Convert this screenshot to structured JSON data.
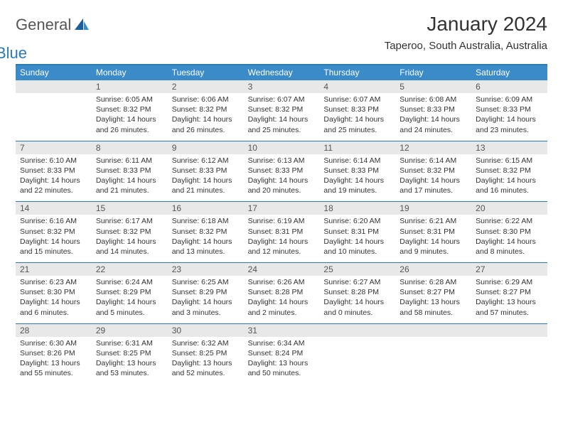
{
  "logo": {
    "text1": "General",
    "text2": "Blue"
  },
  "title": "January 2024",
  "location": "Taperoo, South Australia, Australia",
  "colors": {
    "header_bg": "#3b8bc9",
    "header_border": "#2a7ab9",
    "daynum_bg": "#e8e8e8",
    "text": "#333333",
    "logo_blue": "#2a7ab9"
  },
  "day_names": [
    "Sunday",
    "Monday",
    "Tuesday",
    "Wednesday",
    "Thursday",
    "Friday",
    "Saturday"
  ],
  "weeks": [
    [
      {
        "n": "",
        "lines": [
          "",
          "",
          "",
          ""
        ]
      },
      {
        "n": "1",
        "lines": [
          "Sunrise: 6:05 AM",
          "Sunset: 8:32 PM",
          "Daylight: 14 hours",
          "and 26 minutes."
        ]
      },
      {
        "n": "2",
        "lines": [
          "Sunrise: 6:06 AM",
          "Sunset: 8:32 PM",
          "Daylight: 14 hours",
          "and 26 minutes."
        ]
      },
      {
        "n": "3",
        "lines": [
          "Sunrise: 6:07 AM",
          "Sunset: 8:32 PM",
          "Daylight: 14 hours",
          "and 25 minutes."
        ]
      },
      {
        "n": "4",
        "lines": [
          "Sunrise: 6:07 AM",
          "Sunset: 8:33 PM",
          "Daylight: 14 hours",
          "and 25 minutes."
        ]
      },
      {
        "n": "5",
        "lines": [
          "Sunrise: 6:08 AM",
          "Sunset: 8:33 PM",
          "Daylight: 14 hours",
          "and 24 minutes."
        ]
      },
      {
        "n": "6",
        "lines": [
          "Sunrise: 6:09 AM",
          "Sunset: 8:33 PM",
          "Daylight: 14 hours",
          "and 23 minutes."
        ]
      }
    ],
    [
      {
        "n": "7",
        "lines": [
          "Sunrise: 6:10 AM",
          "Sunset: 8:33 PM",
          "Daylight: 14 hours",
          "and 22 minutes."
        ]
      },
      {
        "n": "8",
        "lines": [
          "Sunrise: 6:11 AM",
          "Sunset: 8:33 PM",
          "Daylight: 14 hours",
          "and 21 minutes."
        ]
      },
      {
        "n": "9",
        "lines": [
          "Sunrise: 6:12 AM",
          "Sunset: 8:33 PM",
          "Daylight: 14 hours",
          "and 21 minutes."
        ]
      },
      {
        "n": "10",
        "lines": [
          "Sunrise: 6:13 AM",
          "Sunset: 8:33 PM",
          "Daylight: 14 hours",
          "and 20 minutes."
        ]
      },
      {
        "n": "11",
        "lines": [
          "Sunrise: 6:14 AM",
          "Sunset: 8:33 PM",
          "Daylight: 14 hours",
          "and 19 minutes."
        ]
      },
      {
        "n": "12",
        "lines": [
          "Sunrise: 6:14 AM",
          "Sunset: 8:32 PM",
          "Daylight: 14 hours",
          "and 17 minutes."
        ]
      },
      {
        "n": "13",
        "lines": [
          "Sunrise: 6:15 AM",
          "Sunset: 8:32 PM",
          "Daylight: 14 hours",
          "and 16 minutes."
        ]
      }
    ],
    [
      {
        "n": "14",
        "lines": [
          "Sunrise: 6:16 AM",
          "Sunset: 8:32 PM",
          "Daylight: 14 hours",
          "and 15 minutes."
        ]
      },
      {
        "n": "15",
        "lines": [
          "Sunrise: 6:17 AM",
          "Sunset: 8:32 PM",
          "Daylight: 14 hours",
          "and 14 minutes."
        ]
      },
      {
        "n": "16",
        "lines": [
          "Sunrise: 6:18 AM",
          "Sunset: 8:32 PM",
          "Daylight: 14 hours",
          "and 13 minutes."
        ]
      },
      {
        "n": "17",
        "lines": [
          "Sunrise: 6:19 AM",
          "Sunset: 8:31 PM",
          "Daylight: 14 hours",
          "and 12 minutes."
        ]
      },
      {
        "n": "18",
        "lines": [
          "Sunrise: 6:20 AM",
          "Sunset: 8:31 PM",
          "Daylight: 14 hours",
          "and 10 minutes."
        ]
      },
      {
        "n": "19",
        "lines": [
          "Sunrise: 6:21 AM",
          "Sunset: 8:31 PM",
          "Daylight: 14 hours",
          "and 9 minutes."
        ]
      },
      {
        "n": "20",
        "lines": [
          "Sunrise: 6:22 AM",
          "Sunset: 8:30 PM",
          "Daylight: 14 hours",
          "and 8 minutes."
        ]
      }
    ],
    [
      {
        "n": "21",
        "lines": [
          "Sunrise: 6:23 AM",
          "Sunset: 8:30 PM",
          "Daylight: 14 hours",
          "and 6 minutes."
        ]
      },
      {
        "n": "22",
        "lines": [
          "Sunrise: 6:24 AM",
          "Sunset: 8:29 PM",
          "Daylight: 14 hours",
          "and 5 minutes."
        ]
      },
      {
        "n": "23",
        "lines": [
          "Sunrise: 6:25 AM",
          "Sunset: 8:29 PM",
          "Daylight: 14 hours",
          "and 3 minutes."
        ]
      },
      {
        "n": "24",
        "lines": [
          "Sunrise: 6:26 AM",
          "Sunset: 8:28 PM",
          "Daylight: 14 hours",
          "and 2 minutes."
        ]
      },
      {
        "n": "25",
        "lines": [
          "Sunrise: 6:27 AM",
          "Sunset: 8:28 PM",
          "Daylight: 14 hours",
          "and 0 minutes."
        ]
      },
      {
        "n": "26",
        "lines": [
          "Sunrise: 6:28 AM",
          "Sunset: 8:27 PM",
          "Daylight: 13 hours",
          "and 58 minutes."
        ]
      },
      {
        "n": "27",
        "lines": [
          "Sunrise: 6:29 AM",
          "Sunset: 8:27 PM",
          "Daylight: 13 hours",
          "and 57 minutes."
        ]
      }
    ],
    [
      {
        "n": "28",
        "lines": [
          "Sunrise: 6:30 AM",
          "Sunset: 8:26 PM",
          "Daylight: 13 hours",
          "and 55 minutes."
        ]
      },
      {
        "n": "29",
        "lines": [
          "Sunrise: 6:31 AM",
          "Sunset: 8:25 PM",
          "Daylight: 13 hours",
          "and 53 minutes."
        ]
      },
      {
        "n": "30",
        "lines": [
          "Sunrise: 6:32 AM",
          "Sunset: 8:25 PM",
          "Daylight: 13 hours",
          "and 52 minutes."
        ]
      },
      {
        "n": "31",
        "lines": [
          "Sunrise: 6:34 AM",
          "Sunset: 8:24 PM",
          "Daylight: 13 hours",
          "and 50 minutes."
        ]
      },
      {
        "n": "",
        "lines": [
          "",
          "",
          "",
          ""
        ]
      },
      {
        "n": "",
        "lines": [
          "",
          "",
          "",
          ""
        ]
      },
      {
        "n": "",
        "lines": [
          "",
          "",
          "",
          ""
        ]
      }
    ]
  ]
}
